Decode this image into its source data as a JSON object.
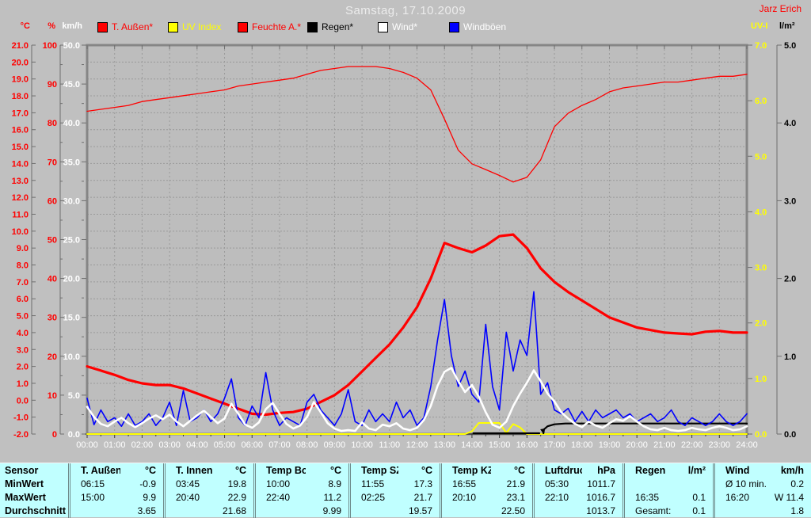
{
  "header": {
    "title": "Samstag, 17.10.2009",
    "author": "Jarz Erich"
  },
  "legend": [
    {
      "label": "T. Außen*",
      "swatch": "#ff0000",
      "text_color": "#ff0000"
    },
    {
      "label": "UV Index",
      "swatch": "#ffff00",
      "text_color": "#ffff00"
    },
    {
      "label": "Feuchte A.*",
      "swatch": "#ff0000",
      "text_color": "#ff0000"
    },
    {
      "label": "Regen*",
      "swatch": "#000000",
      "text_color": "#000000"
    },
    {
      "label": "Wind*",
      "swatch": "#ffffff",
      "text_color": "#ffffff"
    },
    {
      "label": "Windböen",
      "swatch": "#0000ff",
      "text_color": "#ffffff"
    }
  ],
  "colors": {
    "background": "#c0c0c0",
    "plot_background": "#bdbdbd",
    "grid": "#9a9a9a",
    "frame": "#868686",
    "bottom_axis": "#3a3a3a",
    "tick": "#6e6e6e",
    "x_label": "#ffffff",
    "table_background": "#c0ffff"
  },
  "chart_data": {
    "type": "line",
    "title": "Samstag, 17.10.2009",
    "x_unit": "time of day (hours)",
    "x_range": [
      0,
      24
    ],
    "grid": "dashed; vertical every hour, horizontal every 1 °C step",
    "legend_position": "top",
    "x_tick_labels": [
      "00:00",
      "01:00",
      "02:00",
      "03:00",
      "04:00",
      "05:00",
      "06:00",
      "07:00",
      "08:00",
      "09:00",
      "10:00",
      "11:00",
      "12:00",
      "13:00",
      "14:00",
      "15:00",
      "16:00",
      "17:00",
      "18:00",
      "19:00",
      "20:00",
      "21:00",
      "22:00",
      "23:00",
      "24:00"
    ],
    "axes_left": [
      {
        "id": "celsius",
        "label": "°C",
        "color": "#ff0000",
        "min": -2,
        "max": 21,
        "step": 1,
        "minor_step": 0,
        "decimals": 1
      },
      {
        "id": "percent",
        "label": "%",
        "color": "#ff0000",
        "min": 0,
        "max": 100,
        "step": 10,
        "minor_step": 5,
        "decimals": 0
      },
      {
        "id": "kmh",
        "label": "km/h",
        "color": "#ffffff",
        "min": 0,
        "max": 50,
        "step": 5,
        "minor_step": 2.5,
        "decimals": 1
      }
    ],
    "axes_right": [
      {
        "id": "uvi",
        "label": "UV-I",
        "color": "#ffff00",
        "min": 0,
        "max": 7,
        "step": 1,
        "minor_step": 0.5,
        "decimals": 1
      },
      {
        "id": "lm2",
        "label": "l/m²",
        "color": "#000000",
        "min": 0,
        "max": 5,
        "step": 1,
        "minor_step": 0.5,
        "decimals": 1
      }
    ],
    "series": [
      {
        "name": "Feuchte A.*",
        "axis": "percent",
        "color": "#ff0000",
        "width": 1.3,
        "x_start": 0,
        "x_step": 0.5,
        "values": [
          83,
          83.5,
          84,
          84.5,
          85.5,
          86,
          86.5,
          87,
          87.5,
          88,
          88.5,
          89.5,
          90,
          90.5,
          91,
          91.5,
          92.5,
          93.5,
          94,
          94.5,
          94.5,
          94.5,
          94,
          93,
          91.5,
          88.5,
          81,
          73,
          69.5,
          68,
          66.5,
          64.8,
          66,
          70.5,
          79,
          82.5,
          84.5,
          86,
          88,
          89,
          89.5,
          90,
          90.5,
          90.5,
          91,
          91.5,
          92,
          92,
          92.5
        ]
      },
      {
        "name": "T. Außen*",
        "axis": "celsius",
        "color": "#ff0000",
        "width": 3.2,
        "x_start": 0,
        "x_step": 0.5,
        "values": [
          2.0,
          1.75,
          1.5,
          1.2,
          1.0,
          0.9,
          0.9,
          0.7,
          0.4,
          0.1,
          -0.2,
          -0.5,
          -0.8,
          -0.85,
          -0.75,
          -0.7,
          -0.5,
          -0.1,
          0.3,
          0.9,
          1.7,
          2.5,
          3.3,
          4.3,
          5.5,
          7.2,
          9.3,
          9.0,
          8.75,
          9.15,
          9.7,
          9.8,
          9.0,
          7.8,
          7.0,
          6.4,
          5.9,
          5.4,
          4.9,
          4.6,
          4.3,
          4.15,
          4.0,
          3.95,
          3.9,
          4.05,
          4.1,
          4.0,
          4.0
        ]
      },
      {
        "name": "UV Index",
        "axis": "uvi",
        "color": "#ffff00",
        "width": 2.0,
        "x_start": 0,
        "x_step": 0.25,
        "values": [
          0,
          0,
          0,
          0,
          0,
          0,
          0,
          0,
          0,
          0,
          0,
          0,
          0,
          0,
          0,
          0,
          0,
          0,
          0,
          0,
          0,
          0,
          0,
          0,
          0,
          0,
          0,
          0,
          0,
          0,
          0,
          0,
          0,
          0,
          0,
          0,
          0,
          0,
          0,
          0,
          0,
          0,
          0,
          0,
          0,
          0,
          0,
          0,
          0,
          0,
          0,
          0,
          0,
          0,
          0,
          0,
          0.05,
          0.2,
          0.2,
          0.2,
          0.2,
          0.02,
          0.18,
          0.12,
          0,
          0,
          0,
          0,
          0,
          0,
          0,
          0,
          0,
          0,
          0,
          0,
          0,
          0,
          0,
          0,
          0,
          0,
          0,
          0,
          0,
          0,
          0,
          0,
          0,
          0,
          0,
          0,
          0,
          0,
          0,
          0,
          0
        ]
      },
      {
        "name": "Regen*",
        "axis": "lm2",
        "color": "#000000",
        "width": 2.2,
        "segments": [
          {
            "x": [
              14.05,
              16.45
            ],
            "values": [
              0.01,
              0.01
            ]
          },
          {
            "x": [
              16.6,
              16.62,
              16.75,
              17.0,
              17.4,
              24.0
            ],
            "values": [
              0.01,
              0.06,
              0.1,
              0.125,
              0.135,
              0.135
            ]
          }
        ],
        "start_marker": {
          "x": 16.6,
          "value": 0.01
        },
        "gesamt": 0.1
      },
      {
        "name": "Windböen",
        "axis": "kmh",
        "color": "#0000ff",
        "width": 1.6,
        "x_start": 0,
        "x_step": 0.25,
        "values": [
          4.6,
          1.2,
          3.1,
          1.6,
          2.1,
          1.0,
          2.6,
          1.1,
          1.6,
          2.6,
          1.1,
          2.1,
          4.1,
          1.1,
          5.6,
          1.6,
          2.1,
          3.1,
          1.6,
          2.6,
          4.6,
          7.1,
          2.1,
          1.1,
          3.6,
          2.1,
          7.9,
          3.1,
          1.1,
          2.1,
          1.6,
          1.1,
          4.1,
          5.1,
          3.1,
          2.1,
          1.1,
          2.6,
          5.7,
          1.6,
          1.1,
          3.1,
          1.6,
          2.6,
          1.6,
          4.1,
          2.1,
          3.1,
          1.1,
          2.1,
          6.1,
          12.1,
          17.3,
          10.1,
          6.1,
          8.1,
          5.1,
          4.1,
          14.1,
          6.1,
          3.1,
          13.1,
          8.1,
          12.1,
          10.1,
          18.3,
          5.1,
          6.6,
          3.1,
          2.6,
          3.3,
          1.6,
          2.9,
          1.6,
          3.1,
          2.1,
          2.6,
          3.1,
          2.1,
          2.6,
          1.6,
          2.1,
          2.6,
          1.6,
          2.1,
          3.1,
          1.6,
          1.1,
          2.1,
          1.6,
          1.1,
          1.6,
          2.6,
          1.6,
          1.1,
          1.6,
          2.6
        ]
      },
      {
        "name": "Wind*",
        "axis": "kmh",
        "color": "#ffffff",
        "width": 2.6,
        "x_start": 0,
        "x_step": 0.25,
        "values": [
          3.5,
          2.2,
          1.3,
          1.0,
          1.6,
          2.1,
          1.4,
          0.9,
          1.4,
          2.0,
          2.4,
          1.9,
          2.5,
          1.6,
          1.0,
          1.7,
          2.4,
          3.0,
          2.2,
          1.4,
          2.0,
          3.9,
          2.6,
          1.2,
          0.8,
          1.5,
          3.2,
          4.0,
          2.6,
          1.3,
          0.7,
          1.1,
          2.2,
          4.1,
          2.8,
          1.4,
          0.7,
          0.4,
          0.5,
          0.4,
          1.5,
          0.7,
          0.5,
          1.2,
          1.0,
          1.4,
          0.7,
          0.5,
          0.8,
          1.8,
          3.6,
          6.2,
          8.0,
          8.5,
          6.8,
          5.4,
          6.3,
          4.8,
          2.8,
          1.2,
          0.8,
          1.6,
          3.6,
          5.2,
          6.6,
          8.2,
          6.8,
          5.2,
          4.2,
          2.8,
          2.0,
          1.3,
          0.9,
          1.6,
          1.1,
          0.8,
          1.4,
          1.9,
          1.7,
          2.3,
          1.6,
          1.0,
          0.6,
          0.5,
          0.8,
          0.5,
          0.4,
          0.5,
          0.8,
          0.6,
          0.5,
          0.8,
          1.0,
          0.8,
          0.5,
          0.6,
          1.0
        ]
      }
    ]
  },
  "table": {
    "row_labels": [
      "Sensor",
      "MinWert",
      "MaxWert",
      "Durchschnitt"
    ],
    "groups": [
      {
        "name": "T. Außen",
        "unit": "°C",
        "rows": [
          [
            "06:15",
            "-0.9"
          ],
          [
            "15:00",
            "9.9"
          ],
          [
            "",
            "3.65"
          ]
        ]
      },
      {
        "name": "T. Innen",
        "unit": "°C",
        "rows": [
          [
            "03:45",
            "19.8"
          ],
          [
            "20:40",
            "22.9"
          ],
          [
            "",
            "21.68"
          ]
        ]
      },
      {
        "name": "Temp Boden",
        "unit": "°C",
        "rows": [
          [
            "10:00",
            "8.9"
          ],
          [
            "22:40",
            "11.2"
          ],
          [
            "",
            "9.99"
          ]
        ]
      },
      {
        "name": "Temp SZ",
        "unit": "°C",
        "rows": [
          [
            "11:55",
            "17.3"
          ],
          [
            "02:25",
            "21.7"
          ],
          [
            "",
            "19.57"
          ]
        ]
      },
      {
        "name": "Temp KZ",
        "unit": "°C",
        "rows": [
          [
            "16:55",
            "21.9"
          ],
          [
            "20:10",
            "23.1"
          ],
          [
            "",
            "22.50"
          ]
        ]
      },
      {
        "name": "Luftdruck",
        "unit": "hPa",
        "rows": [
          [
            "05:30",
            "1011.7"
          ],
          [
            "22:10",
            "1016.7"
          ],
          [
            "",
            "1013.7"
          ]
        ]
      },
      {
        "name": "Regen",
        "unit": "l/m²",
        "rows": [
          [
            "",
            ""
          ],
          [
            "16:35",
            "0.1"
          ],
          [
            "Gesamt:",
            "0.1"
          ]
        ]
      },
      {
        "name": "Wind",
        "unit": "km/h",
        "rows": [
          [
            "Ø 10 min.",
            "0.2"
          ],
          [
            "16:20",
            "W 11.4"
          ],
          [
            "",
            "1.8"
          ]
        ]
      }
    ]
  }
}
